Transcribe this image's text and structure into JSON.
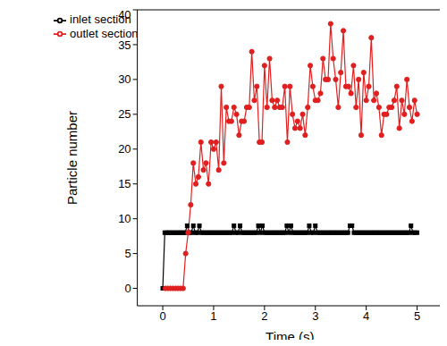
{
  "chart_data": {
    "type": "line",
    "x_label": "Time (s)",
    "y_label": "Particle number",
    "xlim": [
      -0.5,
      5.5
    ],
    "xticks": [
      0,
      1,
      2,
      3,
      4,
      5
    ],
    "ylim": [
      -2.5,
      40
    ],
    "yticks": [
      0,
      5,
      10,
      15,
      20,
      25,
      30,
      35,
      40
    ],
    "grid": false,
    "legend": "upper left",
    "series": [
      {
        "name": "inlet section",
        "color": "#000000",
        "marker": "square",
        "line_style": "solid",
        "x": [
          0,
          0.04,
          0.08,
          0.12,
          0.16,
          0.2,
          0.24,
          0.28,
          0.32,
          0.36,
          0.4,
          0.44,
          0.48,
          0.52,
          0.56,
          0.6,
          0.64,
          0.68,
          0.72,
          0.76,
          0.8,
          0.84,
          0.88,
          0.92,
          0.96,
          1,
          1.04,
          1.08,
          1.12,
          1.16,
          1.2,
          1.24,
          1.28,
          1.32,
          1.36,
          1.4,
          1.44,
          1.48,
          1.52,
          1.56,
          1.6,
          1.64,
          1.68,
          1.72,
          1.76,
          1.8,
          1.84,
          1.88,
          1.92,
          1.96,
          2,
          2.04,
          2.08,
          2.12,
          2.16,
          2.2,
          2.24,
          2.28,
          2.32,
          2.36,
          2.4,
          2.44,
          2.48,
          2.52,
          2.56,
          2.6,
          2.64,
          2.68,
          2.72,
          2.76,
          2.8,
          2.84,
          2.88,
          2.92,
          2.96,
          3,
          3.04,
          3.08,
          3.12,
          3.16,
          3.2,
          3.24,
          3.28,
          3.32,
          3.36,
          3.4,
          3.44,
          3.48,
          3.52,
          3.56,
          3.6,
          3.64,
          3.68,
          3.72,
          3.76,
          3.8,
          3.84,
          3.88,
          3.92,
          3.96,
          4,
          4.04,
          4.08,
          4.12,
          4.16,
          4.2,
          4.24,
          4.28,
          4.32,
          4.36,
          4.4,
          4.44,
          4.48,
          4.52,
          4.56,
          4.6,
          4.64,
          4.68,
          4.72,
          4.76,
          4.8,
          4.84,
          4.88,
          4.92,
          4.96,
          5
        ],
        "values": [
          0,
          8,
          8,
          8,
          8,
          8,
          8,
          8,
          8,
          8,
          8,
          8,
          9,
          8,
          8,
          9,
          8,
          8,
          9,
          8,
          8,
          8,
          8,
          8,
          8,
          8,
          8,
          8,
          8,
          8,
          8,
          8,
          8,
          8,
          8,
          9,
          8,
          8,
          9,
          8,
          8,
          8,
          8,
          8,
          8,
          8,
          8,
          9,
          8,
          9,
          8,
          8,
          8,
          8,
          8,
          8,
          8,
          8,
          8,
          8,
          8,
          9,
          8,
          9,
          8,
          8,
          8,
          8,
          8,
          8,
          8,
          8,
          9,
          8,
          8,
          9,
          8,
          8,
          8,
          8,
          8,
          8,
          8,
          8,
          8,
          8,
          8,
          8,
          8,
          8,
          8,
          8,
          9,
          9,
          8,
          8,
          8,
          8,
          8,
          8,
          8,
          8,
          8,
          8,
          8,
          8,
          8,
          8,
          8,
          8,
          8,
          8,
          8,
          8,
          8,
          8,
          8,
          8,
          8,
          8,
          8,
          8,
          9,
          8,
          8,
          8
        ]
      },
      {
        "name": "outlet section",
        "color": "#e02020",
        "marker": "circle",
        "line_style": "solid",
        "x": [
          0.05,
          0.1,
          0.15,
          0.2,
          0.25,
          0.3,
          0.35,
          0.4,
          0.45,
          0.5,
          0.55,
          0.6,
          0.65,
          0.7,
          0.75,
          0.8,
          0.85,
          0.9,
          0.95,
          1,
          1.05,
          1.1,
          1.15,
          1.2,
          1.25,
          1.3,
          1.35,
          1.4,
          1.45,
          1.5,
          1.55,
          1.6,
          1.65,
          1.7,
          1.75,
          1.8,
          1.85,
          1.9,
          1.95,
          2,
          2.05,
          2.1,
          2.15,
          2.2,
          2.25,
          2.3,
          2.35,
          2.4,
          2.45,
          2.5,
          2.55,
          2.6,
          2.65,
          2.7,
          2.75,
          2.8,
          2.85,
          2.9,
          2.95,
          3,
          3.05,
          3.1,
          3.15,
          3.2,
          3.25,
          3.3,
          3.35,
          3.4,
          3.45,
          3.5,
          3.55,
          3.6,
          3.65,
          3.7,
          3.75,
          3.8,
          3.85,
          3.9,
          3.95,
          4,
          4.05,
          4.1,
          4.15,
          4.2,
          4.25,
          4.3,
          4.35,
          4.4,
          4.45,
          4.5,
          4.55,
          4.6,
          4.65,
          4.7,
          4.75,
          4.8,
          4.85,
          4.9,
          4.95,
          5
        ],
        "values": [
          0,
          0,
          0,
          0,
          0,
          0,
          0,
          0,
          5,
          8,
          12,
          18,
          15,
          16,
          21,
          17,
          18,
          15,
          21,
          20,
          21,
          17,
          29,
          18,
          26,
          24,
          24,
          26,
          25,
          22,
          24,
          24,
          26,
          26,
          34,
          27,
          29,
          21,
          21,
          32,
          26,
          33,
          27,
          26,
          27,
          26,
          26,
          29,
          21,
          29,
          25,
          23,
          24,
          23,
          25,
          22,
          26,
          32,
          29,
          27,
          27,
          28,
          33,
          30,
          30,
          38,
          33,
          30,
          26,
          31,
          37,
          29,
          29,
          28,
          32,
          26,
          30,
          22,
          31,
          27,
          29,
          36,
          27,
          28,
          26,
          22,
          25,
          25,
          26,
          26,
          27,
          29,
          23,
          27,
          25,
          30,
          26,
          24,
          27,
          25
        ]
      }
    ]
  }
}
